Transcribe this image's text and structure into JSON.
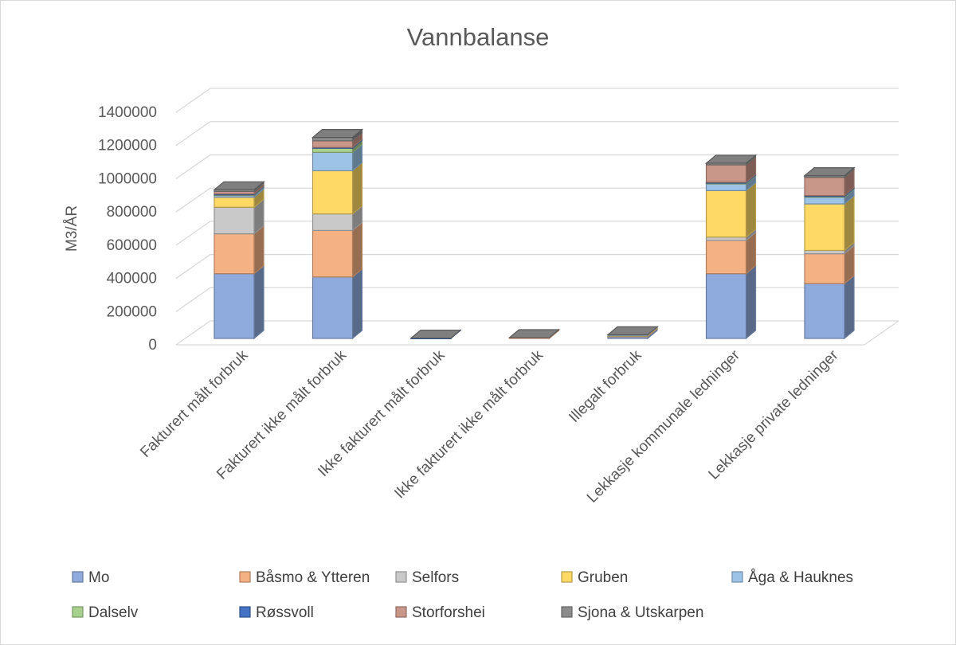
{
  "chart_data": {
    "type": "bar",
    "stacked": true,
    "three_d": true,
    "title": "Vannbalanse",
    "xlabel": "",
    "ylabel": "M3/ÅR",
    "ylim": [
      0,
      1400000
    ],
    "yticks": [
      0,
      200000,
      400000,
      600000,
      800000,
      1000000,
      1200000,
      1400000
    ],
    "ytick_labels": [
      "0",
      "200000",
      "400000",
      "600000",
      "800000",
      "1000000",
      "1200000",
      "1400000"
    ],
    "grid": true,
    "legend_position": "bottom",
    "categories": [
      "Fakturert målt forbruk",
      "Fakturert ikke målt forbruk",
      "Ikke fakturert målt forbruk",
      "Ikke fakturert ikke målt forbruk",
      "Illegalt forbruk",
      "Lekkasje kommunale ledninger",
      "Lekkasje private ledninger"
    ],
    "series": [
      {
        "name": "Mo",
        "color": "#8faadc",
        "values": [
          390000,
          370000,
          0,
          0,
          10000,
          390000,
          330000
        ]
      },
      {
        "name": "Båsmo & Ytteren",
        "color": "#f4b183",
        "values": [
          240000,
          280000,
          0,
          5000,
          3000,
          200000,
          180000
        ]
      },
      {
        "name": "Selfors",
        "color": "#c9c9c9",
        "values": [
          160000,
          100000,
          0,
          0,
          2000,
          20000,
          20000
        ]
      },
      {
        "name": "Gruben",
        "color": "#ffd966",
        "values": [
          60000,
          260000,
          0,
          0,
          5000,
          280000,
          280000
        ]
      },
      {
        "name": "Åga & Hauknes",
        "color": "#9dc3e6",
        "values": [
          10000,
          110000,
          0,
          0,
          2000,
          40000,
          40000
        ]
      },
      {
        "name": "Dalselv",
        "color": "#a9d18e",
        "values": [
          5000,
          25000,
          0,
          0,
          0,
          5000,
          5000
        ]
      },
      {
        "name": "Røssvoll",
        "color": "#4472c4",
        "values": [
          5000,
          5000,
          2000,
          0,
          0,
          5000,
          5000
        ]
      },
      {
        "name": "Storforshei",
        "color": "#c9968a",
        "values": [
          15000,
          40000,
          0,
          0,
          0,
          105000,
          110000
        ]
      },
      {
        "name": "Sjona & Utskarpen",
        "color": "#8c8c8c",
        "values": [
          10000,
          20000,
          0,
          0,
          0,
          10000,
          10000
        ]
      }
    ]
  }
}
